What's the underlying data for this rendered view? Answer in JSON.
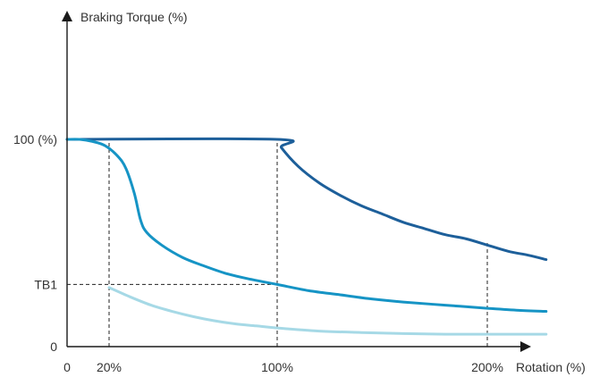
{
  "chart_data": {
    "type": "line",
    "ylabel": "Braking Torque (%)",
    "xlabel": "Rotation (%)",
    "x_ticks": [
      {
        "value": 0,
        "label": "0"
      },
      {
        "value": 20,
        "label": "20%"
      },
      {
        "value": 100,
        "label": "100%"
      },
      {
        "value": 200,
        "label": "200%"
      }
    ],
    "y_ticks": [
      {
        "value": 0,
        "label": "0"
      },
      {
        "value": 30,
        "label": "TB1"
      },
      {
        "value": 100,
        "label": "100 (%)"
      }
    ],
    "xlim": [
      0,
      232
    ],
    "ylim": [
      0,
      160
    ],
    "guides": [
      {
        "from": [
          20,
          0
        ],
        "to": [
          20,
          100
        ]
      },
      {
        "from": [
          0,
          30
        ],
        "to": [
          100,
          30
        ]
      },
      {
        "from": [
          100,
          0
        ],
        "to": [
          100,
          100
        ]
      },
      {
        "from": [
          200,
          0
        ],
        "to": [
          200,
          51
        ]
      }
    ],
    "series": [
      {
        "color": "#1d5f9a",
        "points": [
          [
            0,
            100
          ],
          [
            100,
            100
          ],
          [
            102,
            96
          ],
          [
            110,
            87
          ],
          [
            120,
            79
          ],
          [
            130,
            73
          ],
          [
            140,
            68
          ],
          [
            150,
            64
          ],
          [
            160,
            60
          ],
          [
            170,
            57
          ],
          [
            180,
            54
          ],
          [
            190,
            52
          ],
          [
            200,
            49
          ],
          [
            210,
            46
          ],
          [
            220,
            44
          ],
          [
            228,
            42
          ]
        ]
      },
      {
        "color": "#1694c5",
        "points": [
          [
            0,
            100
          ],
          [
            6,
            100
          ],
          [
            12,
            99
          ],
          [
            18,
            97
          ],
          [
            24,
            92
          ],
          [
            28,
            86
          ],
          [
            32,
            74
          ],
          [
            35,
            61
          ],
          [
            38,
            55
          ],
          [
            45,
            49
          ],
          [
            55,
            43
          ],
          [
            65,
            39
          ],
          [
            75,
            35.5
          ],
          [
            85,
            33
          ],
          [
            100,
            30
          ],
          [
            115,
            27
          ],
          [
            130,
            25
          ],
          [
            145,
            23
          ],
          [
            160,
            21.5
          ],
          [
            180,
            20
          ],
          [
            200,
            18.5
          ],
          [
            215,
            17.5
          ],
          [
            228,
            17
          ]
        ]
      },
      {
        "color": "#a6d9e6",
        "points": [
          [
            20,
            28.5
          ],
          [
            30,
            24
          ],
          [
            40,
            20
          ],
          [
            50,
            17
          ],
          [
            60,
            14.5
          ],
          [
            70,
            12.5
          ],
          [
            80,
            11
          ],
          [
            90,
            10
          ],
          [
            100,
            9
          ],
          [
            120,
            7.5
          ],
          [
            140,
            6.8
          ],
          [
            160,
            6.3
          ],
          [
            180,
            6
          ],
          [
            200,
            6
          ],
          [
            228,
            6
          ]
        ]
      }
    ],
    "grid": false,
    "legend": "none"
  }
}
